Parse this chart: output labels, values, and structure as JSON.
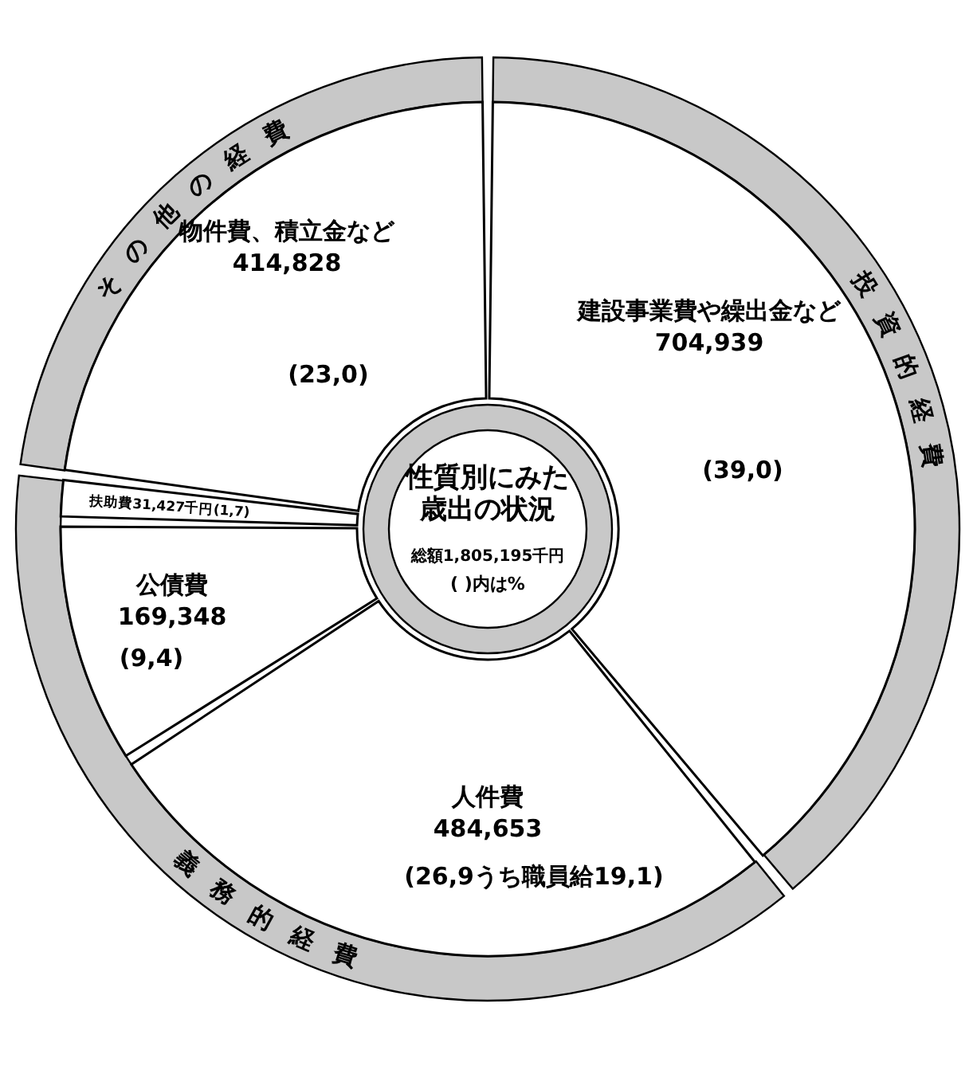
{
  "chart_data": [
    {
      "type": "donut",
      "title": "性質別にみた歳出の状況",
      "subtitle": "総額1,805,195千円",
      "categories": [
        "建設事業費や繰出金など",
        "人件費",
        "公債費",
        "扶助費",
        "物件費、積立金など"
      ],
      "values": [
        704939,
        484653,
        169348,
        31427,
        414828
      ],
      "value_labels": [
        "704,939",
        "484,653",
        "169,348",
        "31,427千円(1,7)",
        "414,828"
      ],
      "colors": [
        "#ffffff",
        "#ffffff",
        "#ffffff",
        "#ffffff",
        "#ffffff"
      ],
      "annotations": [
        "( )内は%",
        "(39,0)",
        "(26,9うち職員給19,1)",
        "(9,4)",
        "(23,0)"
      ]
    },
    {
      "type": "donut",
      "categories": [
        "投資的経費",
        "義務的経費",
        "その他の経費"
      ],
      "values": [
        39.0,
        38.0,
        23.0
      ],
      "colors": [
        "#c8c8c8",
        "#c8c8c8",
        "#c8c8c8"
      ]
    }
  ]
}
